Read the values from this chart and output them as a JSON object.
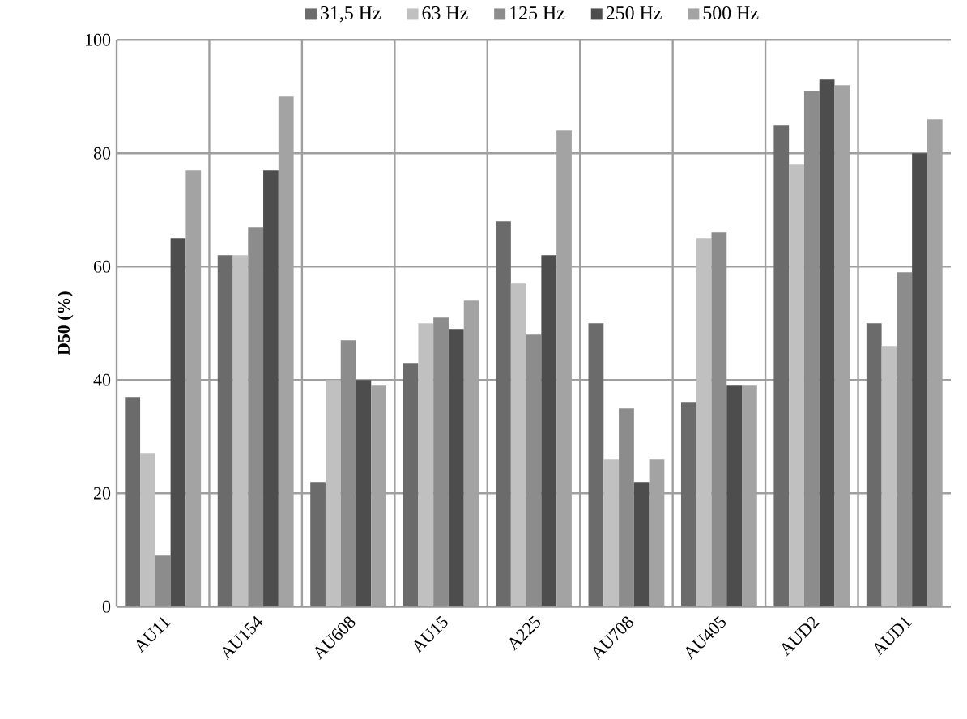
{
  "chart_data": {
    "type": "bar",
    "ylabel": "D50 (%)",
    "categories": [
      "AU11",
      "AU154",
      "AU608",
      "AU15",
      "A225",
      "AU708",
      "AU405",
      "AUD2",
      "AUD1"
    ],
    "series": [
      {
        "name": "31,5 Hz",
        "color": "#6b6b6b",
        "values": [
          37,
          62,
          22,
          43,
          68,
          50,
          36,
          85,
          50
        ]
      },
      {
        "name": "63  Hz",
        "color": "#c0c0c0",
        "values": [
          27,
          62,
          40,
          50,
          57,
          26,
          65,
          78,
          46
        ]
      },
      {
        "name": "125 Hz",
        "color": "#8c8c8c",
        "values": [
          9,
          67,
          47,
          51,
          48,
          35,
          66,
          91,
          59
        ]
      },
      {
        "name": "250 Hz",
        "color": "#4d4d4d",
        "values": [
          65,
          77,
          40,
          49,
          62,
          22,
          39,
          93,
          80
        ]
      },
      {
        "name": "500 Hz",
        "color": "#a3a3a3",
        "values": [
          77,
          90,
          39,
          54,
          84,
          26,
          39,
          92,
          86
        ]
      }
    ],
    "ylim": [
      0,
      100
    ],
    "yticks": [
      0,
      20,
      40,
      60,
      80,
      100
    ],
    "grid": true,
    "legend": "top"
  }
}
